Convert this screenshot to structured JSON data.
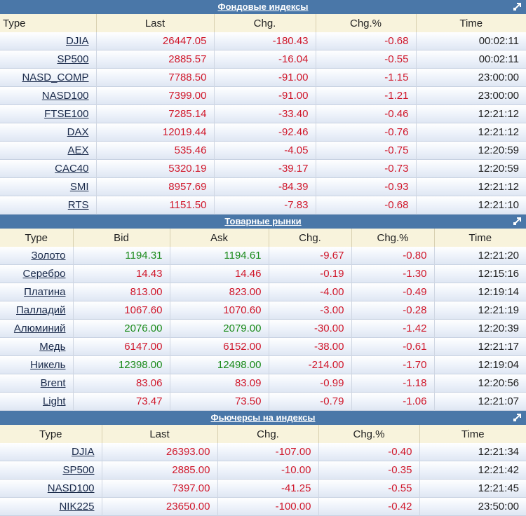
{
  "sections": [
    {
      "title": "Фондовые индексы",
      "columns": [
        "Type",
        "Last",
        "Chg.",
        "Chg.%",
        "Time"
      ],
      "rows": [
        [
          "DJIA",
          "26447.05",
          "-180.43",
          "-0.68",
          "00:02:11"
        ],
        [
          "SP500",
          "2885.57",
          "-16.04",
          "-0.55",
          "00:02:11"
        ],
        [
          "NASD_COMP",
          "7788.50",
          "-91.00",
          "-1.15",
          "23:00:00"
        ],
        [
          "NASD100",
          "7399.00",
          "-91.00",
          "-1.21",
          "23:00:00"
        ],
        [
          "FTSE100",
          "7285.14",
          "-33.40",
          "-0.46",
          "12:21:12"
        ],
        [
          "DAX",
          "12019.44",
          "-92.46",
          "-0.76",
          "12:21:12"
        ],
        [
          "AEX",
          "535.46",
          "-4.05",
          "-0.75",
          "12:20:59"
        ],
        [
          "CAC40",
          "5320.19",
          "-39.17",
          "-0.73",
          "12:20:59"
        ],
        [
          "SMI",
          "8957.69",
          "-84.39",
          "-0.93",
          "12:21:12"
        ],
        [
          "RTS",
          "1151.50",
          "-7.83",
          "-0.68",
          "12:21:10"
        ]
      ]
    },
    {
      "title": "Товарные рынки",
      "columns": [
        "Type",
        "Bid",
        "Ask",
        "Chg.",
        "Chg.%",
        "Time"
      ],
      "rows": [
        [
          "Золото",
          "1194.31",
          "1194.61",
          "-9.67",
          "-0.80",
          "12:21:20"
        ],
        [
          "Серебро",
          "14.43",
          "14.46",
          "-0.19",
          "-1.30",
          "12:15:16"
        ],
        [
          "Платина",
          "813.00",
          "823.00",
          "-4.00",
          "-0.49",
          "12:19:14"
        ],
        [
          "Палладий",
          "1067.60",
          "1070.60",
          "-3.00",
          "-0.28",
          "12:21:19"
        ],
        [
          "Алюминий",
          "2076.00",
          "2079.00",
          "-30.00",
          "-1.42",
          "12:20:39"
        ],
        [
          "Медь",
          "6147.00",
          "6152.00",
          "-38.00",
          "-0.61",
          "12:21:17"
        ],
        [
          "Никель",
          "12398.00",
          "12498.00",
          "-214.00",
          "-1.70",
          "12:19:04"
        ],
        [
          "Brent",
          "83.06",
          "83.09",
          "-0.99",
          "-1.18",
          "12:20:56"
        ],
        [
          "Light",
          "73.47",
          "73.50",
          "-0.79",
          "-1.06",
          "12:21:07"
        ]
      ],
      "green_rows": [
        0,
        4,
        6
      ]
    },
    {
      "title": "Фьючерсы на индексы",
      "columns": [
        "Type",
        "Last",
        "Chg.",
        "Chg.%",
        "Time"
      ],
      "rows": [
        [
          "DJIA",
          "26393.00",
          "-107.00",
          "-0.40",
          "12:21:34"
        ],
        [
          "SP500",
          "2885.00",
          "-10.00",
          "-0.35",
          "12:21:42"
        ],
        [
          "NASD100",
          "7397.00",
          "-41.25",
          "-0.55",
          "12:21:45"
        ],
        [
          "NIK225",
          "23650.00",
          "-100.00",
          "-0.42",
          "23:50:00"
        ]
      ]
    }
  ],
  "colors": {
    "header_bg": "#4a77a8",
    "column_head_bg": "#f8f3dc",
    "negative": "#d0182b",
    "positive": "#1a8a1a"
  }
}
